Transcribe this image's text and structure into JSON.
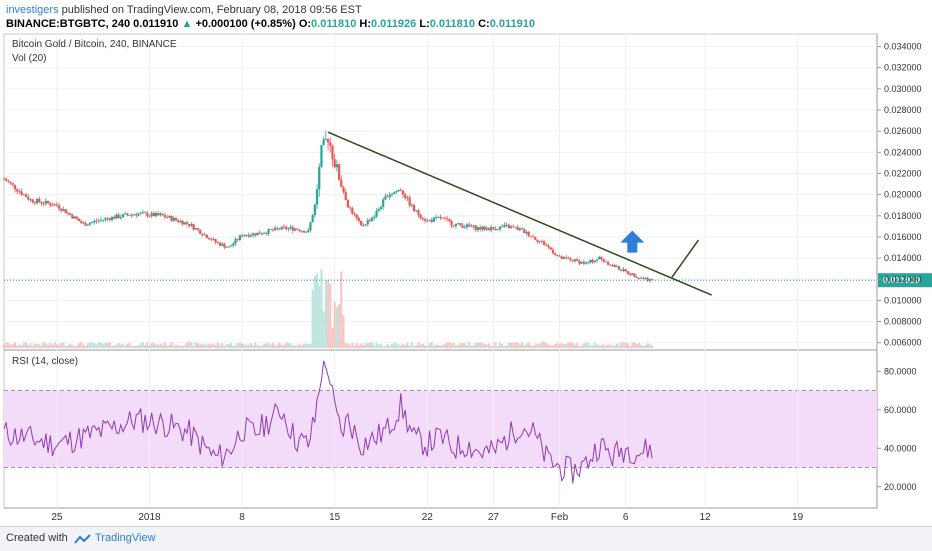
{
  "header": {
    "author": "investigers",
    "published": "published on TradingView.com, February 08, 2018 09:56 EST",
    "symbol": "BINANCE:BTGBTC, 240",
    "last": "0.011910",
    "change": "+0.000100 (+0.85%)",
    "o_label": "O:",
    "o": "0.011810",
    "h_label": "H:",
    "h": "0.011926",
    "l_label": "L:",
    "l": "0.011810",
    "c_label": "C:",
    "c": "0.011910"
  },
  "footer": {
    "made": "Created with",
    "brand": "TradingView"
  },
  "colors": {
    "up": "#26a69a",
    "down": "#ef5350",
    "trend": "#2e4a1a",
    "arrow": "#2f7ed8",
    "rsi_line": "#8e3bb1",
    "rsi_band": "#f3dcf9",
    "price_tag": "#26a69a"
  },
  "chart_data": [
    {
      "type": "candlestick",
      "title": "Bitcoin Gold / Bitcoin, 240, BINANCE",
      "indicator_label": "Vol (20)",
      "ylim": [
        0.0055,
        0.035
      ],
      "y_ticks": [
        "0.034000",
        "0.032000",
        "0.030000",
        "0.028000",
        "0.026000",
        "0.024000",
        "0.022000",
        "0.020000",
        "0.018000",
        "0.016000",
        "0.014000",
        "0.012000",
        "0.010000",
        "0.008000",
        "0.006000"
      ],
      "last_price_label": "0.011910",
      "last_price": 0.01191,
      "x_ticks": [
        "25",
        "2018",
        "8",
        "15",
        "22",
        "27",
        "Feb",
        "6",
        "12",
        "19"
      ],
      "x_tick_days": [
        -7,
        0,
        7,
        14,
        21,
        26,
        31,
        36,
        42,
        49
      ],
      "x_start_day": -11,
      "x_end_day": 55,
      "x_label_note": "days relative to January 1, 2018",
      "close_series": {
        "days": [
          -11,
          -9,
          -7,
          -5,
          -3,
          -1,
          1,
          3,
          5,
          6,
          7,
          8,
          10,
          11,
          12,
          12.5,
          13,
          13.5,
          14,
          14.5,
          15,
          16,
          17,
          18,
          19,
          20,
          21,
          22,
          23,
          24,
          25,
          26,
          27,
          28,
          29,
          30,
          31,
          32,
          33,
          34,
          35,
          36,
          37,
          38
        ],
        "values": [
          0.0215,
          0.0195,
          0.019,
          0.0172,
          0.0178,
          0.0182,
          0.018,
          0.0172,
          0.0155,
          0.015,
          0.0162,
          0.0163,
          0.0168,
          0.0168,
          0.0165,
          0.019,
          0.024,
          0.0255,
          0.023,
          0.021,
          0.019,
          0.017,
          0.018,
          0.02,
          0.0205,
          0.0185,
          0.0175,
          0.0178,
          0.0172,
          0.017,
          0.0168,
          0.0168,
          0.017,
          0.0167,
          0.016,
          0.0152,
          0.014,
          0.0138,
          0.0135,
          0.014,
          0.0133,
          0.0127,
          0.0122,
          0.0119
        ]
      },
      "volume_note": "volume spike near day 13.5",
      "trendline": {
        "from": [
          13.5,
          0.0259
        ],
        "to": [
          42.5,
          0.0105
        ]
      },
      "projection": {
        "from": [
          39.5,
          0.0122
        ],
        "to": [
          41.5,
          0.0157
        ]
      },
      "annotation": "up-arrow"
    },
    {
      "type": "line",
      "title": "RSI (14, close)",
      "ylim": [
        10,
        90
      ],
      "band": [
        30,
        70
      ],
      "y_ticks": [
        "80.0000",
        "60.0000",
        "40.0000",
        "20.0000"
      ],
      "y_tick_values": [
        80,
        60,
        40,
        20
      ],
      "days": [
        -11,
        -9,
        -7,
        -5,
        -3,
        -1,
        1,
        3,
        5,
        6,
        7,
        8,
        10,
        11,
        12,
        12.5,
        13,
        13.5,
        14,
        14.5,
        15,
        16,
        17,
        18,
        19,
        20,
        21,
        22,
        23,
        24,
        25,
        26,
        27,
        28,
        29,
        30,
        31,
        32,
        33,
        34,
        35,
        36,
        37,
        38
      ],
      "values": [
        48,
        45,
        42,
        46,
        50,
        55,
        53,
        48,
        35,
        38,
        50,
        48,
        60,
        45,
        42,
        55,
        80,
        82,
        60,
        48,
        55,
        42,
        45,
        50,
        62,
        45,
        42,
        46,
        40,
        42,
        38,
        38,
        45,
        52,
        48,
        35,
        30,
        28,
        32,
        42,
        36,
        40,
        38,
        40
      ]
    }
  ]
}
